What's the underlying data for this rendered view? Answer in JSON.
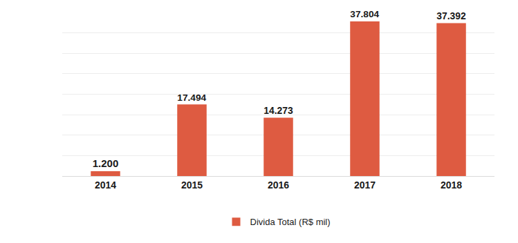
{
  "chart_data": {
    "type": "bar",
    "categories": [
      "2014",
      "2015",
      "2016",
      "2017",
      "2018"
    ],
    "series": [
      {
        "name": "Divida Total (R$ mil)",
        "color": "#de5b41",
        "values": [
          1200,
          17494,
          14273,
          37804,
          37392
        ],
        "value_labels": [
          "1.200",
          "17.494",
          "14.273",
          "37.804",
          "37.392"
        ]
      }
    ],
    "ylim": [
      0,
      40000
    ],
    "yticks": [
      0,
      5000,
      10000,
      15000,
      20000,
      25000,
      30000,
      35000,
      40000
    ],
    "grid": true,
    "legend": "bottom",
    "data_labels": true,
    "tick_labels": "x"
  }
}
